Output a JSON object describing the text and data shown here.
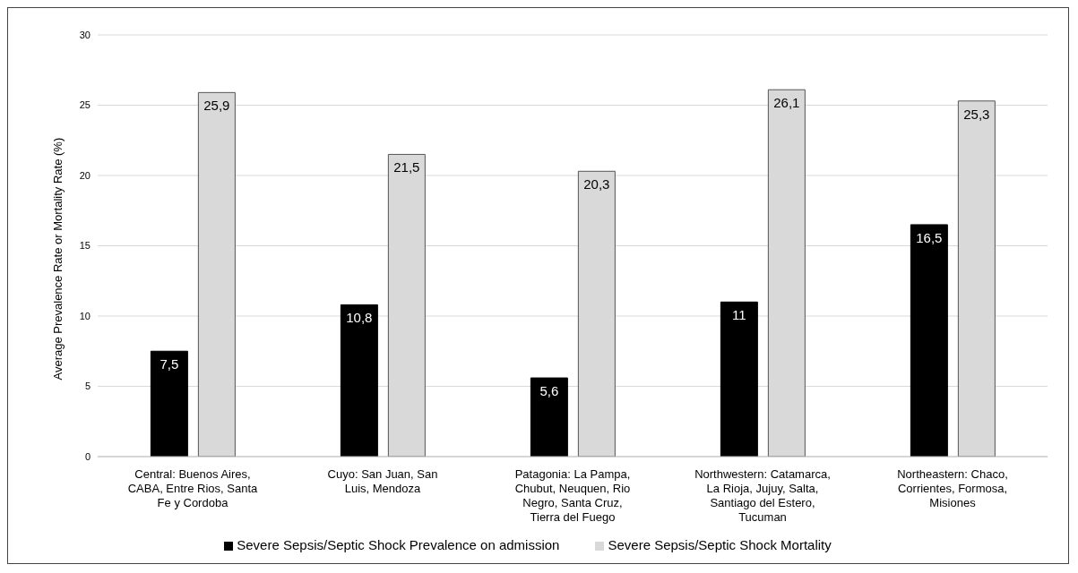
{
  "chart_data": {
    "type": "bar",
    "ylabel": "Average Prevalence Rate or Mortality Rate (%)",
    "categories": [
      "Central: Buenos Aires, CABA, Entre Rios, Santa Fe y Cordoba",
      "Cuyo: San Juan, San Luis, Mendoza",
      "Patagonia: La Pampa, Chubut, Neuquen, Rio Negro, Santa Cruz, Tierra del Fuego",
      "Northwestern: Catamarca, La Rioja, Jujuy, Salta, Santiago del Estero, Tucuman",
      "Northeastern: Chaco, Corrientes, Formosa, Misiones"
    ],
    "series": [
      {
        "name": "Severe Sepsis/Septic Shock Prevalence on admission",
        "color": "#000000",
        "values": [
          7.5,
          10.8,
          5.6,
          11,
          16.5
        ],
        "value_labels": [
          "7,5",
          "10,8",
          "5,6",
          "11",
          "16,5"
        ]
      },
      {
        "name": "Severe Sepsis/Septic Shock Mortality",
        "color": "#d9d9d9",
        "values": [
          25.9,
          21.5,
          20.3,
          26.1,
          25.3
        ],
        "value_labels": [
          "25,9",
          "21,5",
          "20,3",
          "26,1",
          "25,3"
        ]
      }
    ],
    "ylim": [
      0,
      30
    ],
    "yticks": [
      0,
      5,
      10,
      15,
      20,
      25,
      30
    ],
    "grid": "y",
    "legend": "bottom"
  }
}
